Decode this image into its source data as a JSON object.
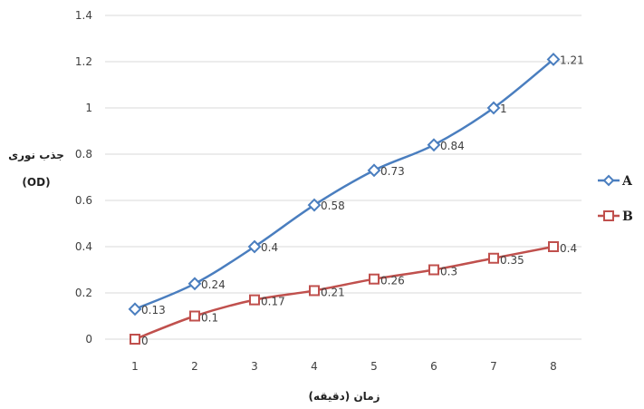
{
  "chart_data": {
    "type": "line",
    "title": "",
    "ylabel_line1": "جذب نوری",
    "ylabel_line2": "(OD)",
    "xlabel": "زمان (دقیقه)",
    "x": [
      1,
      2,
      3,
      4,
      5,
      6,
      7,
      8
    ],
    "ylim": [
      0,
      1.4
    ],
    "yticks": [
      "0",
      "0.2",
      "0.4",
      "0.6",
      "0.8",
      "1",
      "1.2",
      "1.4"
    ],
    "grid": true,
    "legend_position": "right",
    "series": [
      {
        "name": "A",
        "marker": "diamond",
        "color": "#4a7ebf",
        "values": [
          0.13,
          0.24,
          0.4,
          0.58,
          0.73,
          0.84,
          1,
          1.21
        ],
        "labels": [
          "0.13",
          "0.24",
          "0.4",
          "0.58",
          "0.73",
          "0.84",
          "1",
          "1.21"
        ]
      },
      {
        "name": "B",
        "marker": "square",
        "color": "#c0504d",
        "values": [
          0,
          0.1,
          0.17,
          0.21,
          0.26,
          0.3,
          0.35,
          0.4
        ],
        "labels": [
          "0",
          "0.1",
          "0.17",
          "0.21",
          "0.26",
          "0.3",
          "0.35",
          "0.4"
        ]
      }
    ]
  }
}
